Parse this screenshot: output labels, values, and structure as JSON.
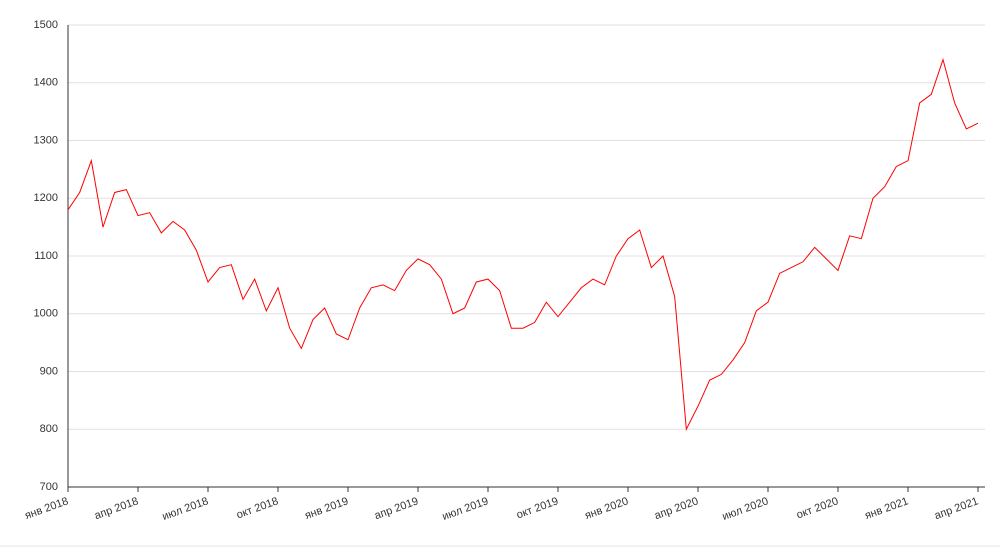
{
  "chart_data": {
    "type": "line",
    "categories": [
      "янв 2018",
      null,
      null,
      null,
      null,
      null,
      "апр 2018",
      null,
      null,
      null,
      null,
      null,
      "июл 2018",
      null,
      null,
      null,
      null,
      null,
      "окт 2018",
      null,
      null,
      null,
      null,
      null,
      "янв 2019",
      null,
      null,
      null,
      null,
      null,
      "апр 2019",
      null,
      null,
      null,
      null,
      null,
      "июл 2019",
      null,
      null,
      null,
      null,
      null,
      "окт 2019",
      null,
      null,
      null,
      null,
      null,
      "янв 2020",
      null,
      null,
      null,
      null,
      null,
      "апр 2020",
      null,
      null,
      null,
      null,
      null,
      "июл 2020",
      null,
      null,
      null,
      null,
      null,
      "окт 2020",
      null,
      null,
      null,
      null,
      null,
      "янв 2021",
      null,
      null,
      null,
      null,
      null,
      "апр 2021"
    ],
    "series": [
      {
        "color": "#ff0000",
        "values": [
          1180,
          1210,
          1265,
          1150,
          1210,
          1215,
          1170,
          1175,
          1140,
          1160,
          1145,
          1110,
          1055,
          1080,
          1085,
          1025,
          1060,
          1005,
          1045,
          975,
          940,
          990,
          1010,
          965,
          955,
          1010,
          1045,
          1050,
          1040,
          1075,
          1095,
          1085,
          1060,
          1000,
          1010,
          1055,
          1060,
          1040,
          975,
          975,
          985,
          1020,
          995,
          1020,
          1045,
          1060,
          1050,
          1100,
          1130,
          1145,
          1080,
          1100,
          1030,
          800,
          840,
          885,
          895,
          920,
          950,
          1005,
          1020,
          1070,
          1080,
          1090,
          1115,
          1095,
          1075,
          1135,
          1130,
          1200,
          1220,
          1255,
          1265,
          1365,
          1380,
          1440,
          1365,
          1320,
          1330
        ]
      }
    ],
    "ylim": [
      700,
      1500
    ],
    "yticks": [
      700,
      800,
      900,
      1000,
      1100,
      1200,
      1300,
      1400,
      1500
    ],
    "grid": true
  }
}
